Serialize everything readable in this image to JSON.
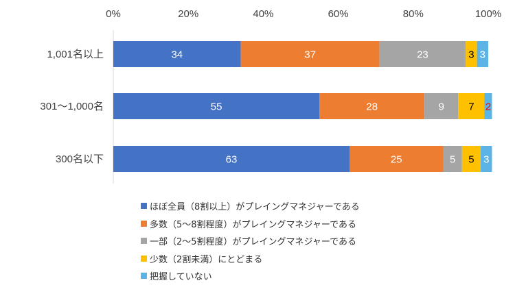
{
  "chart_data": {
    "type": "bar",
    "orientation": "horizontal",
    "stacked": true,
    "x_ticks": [
      "0%",
      "20%",
      "40%",
      "60%",
      "80%",
      "100%"
    ],
    "xlim": [
      0,
      100
    ],
    "categories": [
      "1,001名以上",
      "301～1,000名",
      "300名以下"
    ],
    "series": [
      {
        "name": "ほぼ全員（8割以上）がプレイングマネジャーである",
        "color": "#4472C4",
        "values": [
          34,
          55,
          63
        ],
        "labels": [
          "34",
          "55",
          "63"
        ],
        "label_color": "#ffffff"
      },
      {
        "name": "多数（5～8割程度）がプレイングマネジャーである",
        "color": "#ED7D31",
        "values": [
          37,
          28,
          25
        ],
        "labels": [
          "37",
          "28",
          "25"
        ],
        "label_color": "#ffffff"
      },
      {
        "name": "一部（2～5割程度）がプレイングマネジャーである",
        "color": "#A5A5A5",
        "values": [
          23,
          9,
          5
        ],
        "labels": [
          "23",
          "9",
          "5"
        ],
        "label_color": "#ffffff"
      },
      {
        "name": "少数（2割未満）にとどまる",
        "color": "#FFC000",
        "values": [
          3,
          7,
          5
        ],
        "labels": [
          "3",
          "7",
          "5"
        ],
        "label_color": "#000000"
      },
      {
        "name": "把握していない",
        "color": "#5BB4E5",
        "values": [
          3,
          2,
          3
        ],
        "labels": [
          "3",
          "2",
          "3"
        ],
        "label_color": "#ffffff",
        "label_colors": [
          "#ffffff",
          "#FF0000",
          "#ffffff"
        ]
      }
    ],
    "grid": false,
    "legend_position": "bottom"
  }
}
